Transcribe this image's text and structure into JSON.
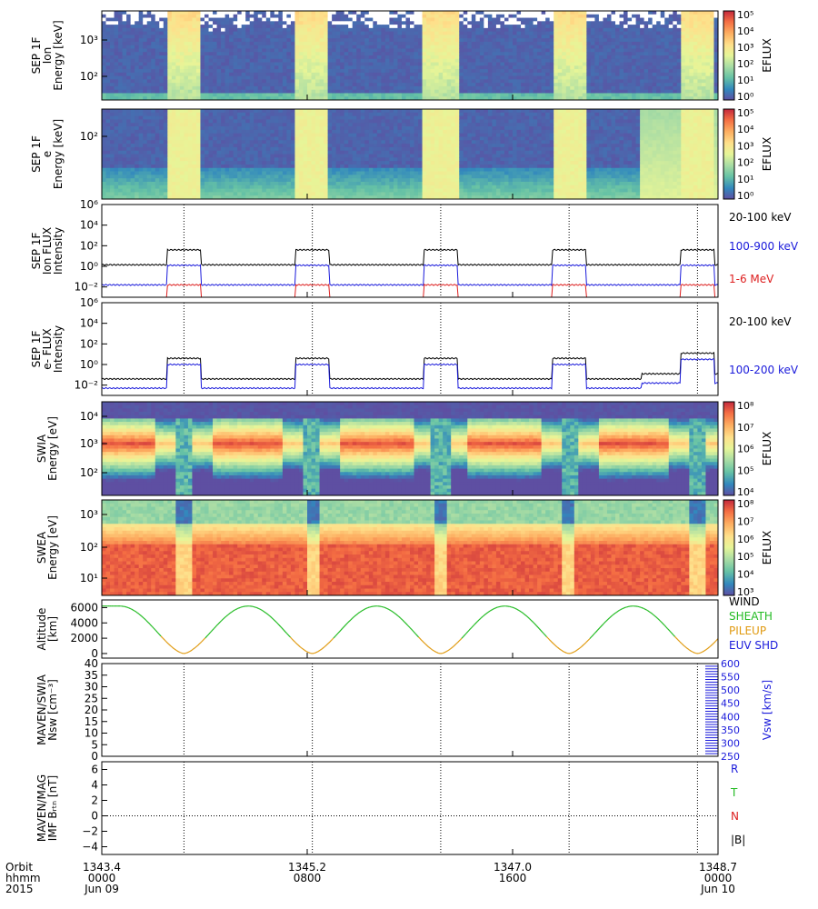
{
  "chart_data": {
    "type": "multi-panel time series",
    "shared_x": {
      "timeline_hours": [
        0,
        24
      ],
      "orbit_marks_hours": [
        3.2,
        8.2,
        13.2,
        18.2,
        23.2
      ],
      "rows": {
        "orbit_label": "Orbit",
        "hhmm_label": "hhmm",
        "year_label": "2015"
      },
      "ticks": [
        {
          "hour": 0,
          "orbit": "1343.4",
          "hhmm": "0000",
          "date": "Jun 09"
        },
        {
          "hour": 8,
          "orbit": "1345.2",
          "hhmm": "0800",
          "date": ""
        },
        {
          "hour": 16,
          "orbit": "1347.0",
          "hhmm": "1600",
          "date": ""
        },
        {
          "hour": 24,
          "orbit": "1348.7",
          "hhmm": "0000",
          "date": "Jun 10"
        }
      ]
    },
    "panels": [
      {
        "id": "sep-ion-spec",
        "type": "heatmap",
        "ylabel": [
          "SEP 1F",
          "Ion",
          "Energy [keV]"
        ],
        "yticks": [
          "10³",
          "10²"
        ],
        "colorbar": {
          "label": "EFLUX",
          "ticks": [
            "10⁵",
            "10⁴",
            "10³",
            "10²",
            "10¹",
            "10⁰"
          ]
        }
      },
      {
        "id": "sep-e-spec",
        "type": "heatmap",
        "ylabel": [
          "SEP 1F",
          "e",
          "Energy [keV]"
        ],
        "yticks": [
          "10²"
        ],
        "colorbar": {
          "label": "EFLUX",
          "ticks": [
            "10⁵",
            "10⁴",
            "10³",
            "10²",
            "10¹",
            "10⁰"
          ]
        }
      },
      {
        "id": "sep-ion-flux",
        "type": "line",
        "ylabel": [
          "SEP 1F",
          "Ion FLUX",
          "Intensity"
        ],
        "yticks": [
          "10⁶",
          "10⁴",
          "10²",
          "10⁰",
          "10⁻²"
        ],
        "log_y_range": [
          -3,
          6
        ],
        "series": [
          {
            "name": "20-100 keV",
            "color": "#000000",
            "baseline_log": 0.15,
            "burst_log": 1.6
          },
          {
            "name": "100-900 keV",
            "color": "#1a1adb",
            "baseline_log": -1.8,
            "burst_log": 0.1
          },
          {
            "name": "1-6 MeV",
            "color": "#dd2020",
            "baseline_log": -3.5,
            "burst_log": -1.8
          }
        ]
      },
      {
        "id": "sep-e-flux",
        "type": "line",
        "ylabel": [
          "SEP 1F",
          "e- FLUX",
          "Intensity"
        ],
        "yticks": [
          "10⁶",
          "10⁴",
          "10²",
          "10⁰",
          "10⁻²"
        ],
        "log_y_range": [
          -3,
          6
        ],
        "series": [
          {
            "name": "20-100 keV",
            "color": "#000000",
            "baseline_log": -1.4,
            "burst_log": 0.6
          },
          {
            "name": "100-200 keV",
            "color": "#1a1adb",
            "baseline_log": -2.3,
            "burst_log": 0.0
          }
        ]
      },
      {
        "id": "swia-spec",
        "type": "heatmap",
        "ylabel": [
          "SWIA",
          "Energy [eV]"
        ],
        "yticks": [
          "10⁴",
          "10³",
          "10²"
        ],
        "colorbar": {
          "label": "EFLUX",
          "ticks": [
            "10⁸",
            "10⁷",
            "10⁶",
            "10⁵",
            "10⁴"
          ]
        }
      },
      {
        "id": "swea-spec",
        "type": "heatmap",
        "ylabel": [
          "SWEA",
          "Energy [eV]"
        ],
        "yticks": [
          "10³",
          "10²",
          "10¹"
        ],
        "colorbar": {
          "label": "EFLUX",
          "ticks": [
            "10⁸",
            "10⁷",
            "10⁶",
            "10⁵",
            "10⁴",
            "10³"
          ]
        }
      },
      {
        "id": "altitude",
        "type": "line",
        "ylabel": [
          "Altitude",
          "[km]"
        ],
        "yticks": [
          "6000",
          "4000",
          "2000",
          "0"
        ],
        "ylim": [
          -600,
          7000
        ],
        "max_altitude_km": 6200,
        "pileup_threshold_km": 2100,
        "legend": [
          {
            "name": "WIND",
            "color": "#000000"
          },
          {
            "name": "SHEATH",
            "color": "#22bb22"
          },
          {
            "name": "PILEUP",
            "color": "#e09a10"
          },
          {
            "name": "EUV SHD",
            "color": "#1a1adb"
          }
        ]
      },
      {
        "id": "swia-moments",
        "type": "line",
        "ylabel": [
          "MAVEN/SWIA",
          "Nsw [cm⁻³]"
        ],
        "yticks": [
          "40",
          "35",
          "30",
          "25",
          "20",
          "15",
          "10",
          "5",
          "0"
        ],
        "ylim": [
          0,
          40
        ],
        "right_axis": {
          "label": "Vsw [km/s]",
          "ticks": [
            "600",
            "550",
            "500",
            "450",
            "400",
            "350",
            "300",
            "250"
          ],
          "color": "#1a1adb"
        }
      },
      {
        "id": "imf",
        "type": "line",
        "ylabel": [
          "MAVEN/MAG",
          "IMF Bᵣₜₙ [nT]"
        ],
        "yticks": [
          "6",
          "4",
          "2",
          "0",
          "−2",
          "−4"
        ],
        "ylim": [
          -5,
          7
        ],
        "legend": [
          {
            "name": "R",
            "color": "#1a1adb"
          },
          {
            "name": "T",
            "color": "#22bb22"
          },
          {
            "name": "N",
            "color": "#dd2020"
          },
          {
            "name": "|B|",
            "color": "#000000"
          }
        ]
      }
    ]
  }
}
